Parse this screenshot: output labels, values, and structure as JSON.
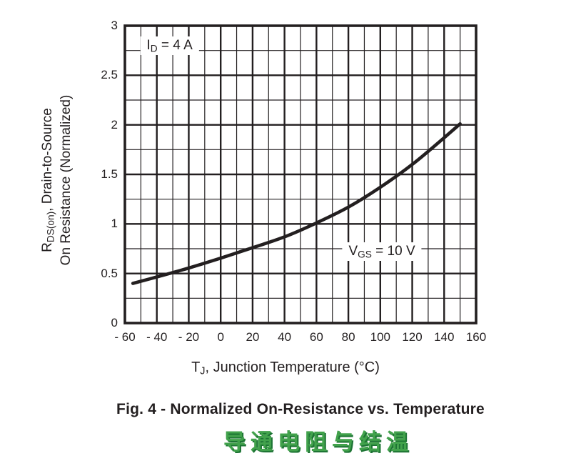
{
  "figure": {
    "caption": "Fig. 4 - Normalized On-Resistance vs. Temperature",
    "caption_cn": "导通电阻与结温"
  },
  "colors": {
    "ink": "#231f20",
    "background": "#ffffff",
    "cn_green": "#42a24c",
    "cn_green_shadow": "#1d7434"
  },
  "chart_data": {
    "type": "line",
    "xlabel_parts": [
      {
        "t": "T"
      },
      {
        "t": "J",
        "sub": true
      },
      {
        "t": ", Junction Temperature (°C)"
      }
    ],
    "ylabel_line1_parts": [
      {
        "t": "R"
      },
      {
        "t": "DS(on)",
        "sub": true
      },
      {
        "t": ", Drain-to-Source"
      }
    ],
    "ylabel_line2_parts": [
      {
        "t": "On Resistance (Normalized)"
      }
    ],
    "xlim": [
      -60,
      160
    ],
    "ylim": [
      0,
      3
    ],
    "x_major_ticks": [
      -60,
      -40,
      -20,
      0,
      20,
      40,
      60,
      80,
      100,
      120,
      140,
      160
    ],
    "x_tick_labels": [
      "- 60",
      "- 40",
      "- 20",
      "0",
      "20",
      "40",
      "60",
      "80",
      "100",
      "120",
      "140",
      "160"
    ],
    "x_minor_step": 10,
    "y_major_ticks": [
      0,
      0.5,
      1,
      1.5,
      2,
      2.5,
      3
    ],
    "y_tick_labels": [
      "0",
      "0.5",
      "1",
      "1.5",
      "2",
      "2.5",
      "3"
    ],
    "y_minor_step": 0.25,
    "grid": true,
    "legend": "none",
    "series": [
      {
        "name": "Normalized RDS(on) at VGS = 10 V, ID = 4 A",
        "x": [
          -55,
          -40,
          -20,
          0,
          20,
          40,
          60,
          80,
          100,
          120,
          140,
          150
        ],
        "y": [
          0.4,
          0.465,
          0.555,
          0.655,
          0.76,
          0.87,
          1.01,
          1.17,
          1.37,
          1.6,
          1.87,
          2.01
        ]
      }
    ],
    "annotations": [
      {
        "id": "drain-current-condition",
        "x": -32,
        "y": 2.8,
        "parts": [
          {
            "t": "I"
          },
          {
            "t": "D",
            "sub": true
          },
          {
            "t": " = 4 A"
          }
        ]
      },
      {
        "id": "gate-voltage-condition",
        "x": 101,
        "y": 0.72,
        "parts": [
          {
            "t": "V"
          },
          {
            "t": "GS",
            "sub": true
          },
          {
            "t": " = 10 V"
          }
        ]
      }
    ]
  }
}
